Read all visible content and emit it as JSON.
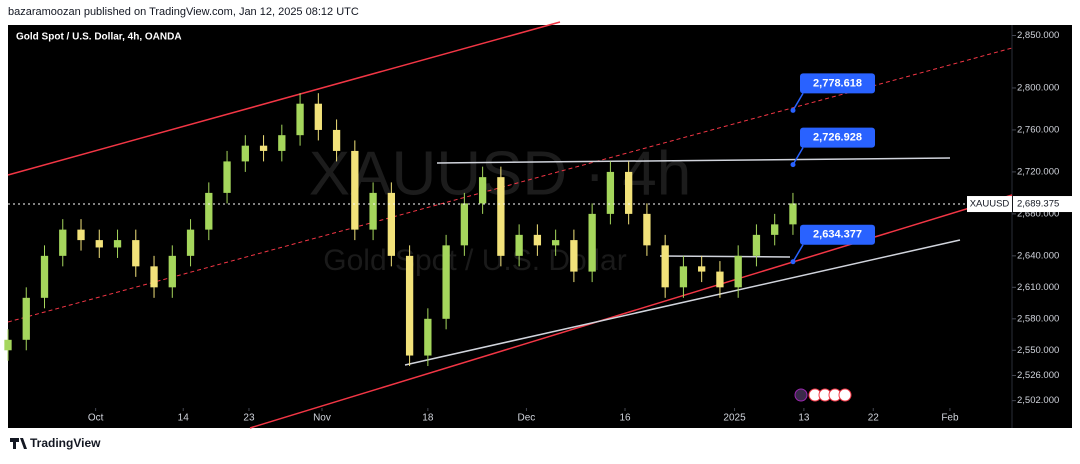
{
  "header": {
    "publisher": "bazaramoozan published on TradingView.com, Jan 12, 2025 08:12 UTC"
  },
  "footer": {
    "brand": "TradingView"
  },
  "chart_data": {
    "type": "candlestick",
    "title": "Gold Spot / U.S. Dollar, 4h, OANDA",
    "watermark": "XAUUSD · 4h",
    "watermark_subtitle": "Gold Spot / U.S. Dollar",
    "symbol": "XAUUSD",
    "last_price": {
      "value": 2689.375,
      "label": "2,689.375"
    },
    "up_color": "#a5d65c",
    "down_color": "#f2e27a",
    "x": [
      0,
      2.5,
      5,
      7.5,
      10,
      12.5,
      15,
      17.5,
      20,
      22.5,
      25,
      27.5,
      30,
      32.5,
      35,
      37.5,
      40,
      42.5,
      45,
      47.5,
      50,
      52.5,
      55,
      57.5,
      60,
      62.5,
      65,
      67.5,
      70,
      72.5,
      75,
      77.5,
      80,
      82.5,
      85,
      87.5,
      90,
      92.5,
      95,
      97.5,
      100,
      102.5,
      105,
      107.5
    ],
    "open": [
      2550,
      2560,
      2600,
      2640,
      2665,
      2655,
      2648,
      2655,
      2630,
      2610,
      2640,
      2665,
      2700,
      2730,
      2745,
      2740,
      2755,
      2785,
      2760,
      2740,
      2665,
      2700,
      2640,
      2545,
      2580,
      2650,
      2690,
      2715,
      2640,
      2660,
      2650,
      2655,
      2625,
      2680,
      2720,
      2680,
      2650,
      2610,
      2630,
      2625,
      2610,
      2640,
      2660,
      2670
    ],
    "high": [
      2570,
      2610,
      2650,
      2675,
      2675,
      2665,
      2665,
      2665,
      2640,
      2650,
      2675,
      2710,
      2740,
      2755,
      2755,
      2765,
      2795,
      2795,
      2770,
      2750,
      2710,
      2710,
      2650,
      2590,
      2660,
      2700,
      2725,
      2725,
      2670,
      2670,
      2665,
      2665,
      2690,
      2730,
      2730,
      2690,
      2660,
      2640,
      2640,
      2635,
      2650,
      2670,
      2680,
      2700
    ],
    "low": [
      2540,
      2550,
      2590,
      2630,
      2645,
      2638,
      2638,
      2620,
      2600,
      2600,
      2630,
      2655,
      2690,
      2720,
      2730,
      2730,
      2745,
      2750,
      2730,
      2655,
      2655,
      2630,
      2535,
      2535,
      2570,
      2640,
      2680,
      2630,
      2630,
      2640,
      2640,
      2615,
      2615,
      2670,
      2670,
      2640,
      2600,
      2600,
      2615,
      2600,
      2600,
      2630,
      2650,
      2660
    ],
    "close": [
      2560,
      2600,
      2640,
      2665,
      2655,
      2648,
      2655,
      2630,
      2610,
      2640,
      2665,
      2700,
      2730,
      2745,
      2740,
      2755,
      2785,
      2760,
      2740,
      2665,
      2700,
      2640,
      2545,
      2580,
      2650,
      2690,
      2715,
      2640,
      2660,
      2650,
      2655,
      2625,
      2680,
      2720,
      2680,
      2650,
      2610,
      2630,
      2625,
      2610,
      2640,
      2660,
      2670,
      2690
    ],
    "xlim": [
      0,
      137.5
    ],
    "xticks": [
      {
        "value": 12,
        "label": "Oct"
      },
      {
        "value": 24,
        "label": "14"
      },
      {
        "value": 33,
        "label": "23"
      },
      {
        "value": 43,
        "label": "Nov"
      },
      {
        "value": 57.5,
        "label": "18"
      },
      {
        "value": 71,
        "label": "Dec"
      },
      {
        "value": 84.5,
        "label": "16"
      },
      {
        "value": 99.5,
        "label": "2025"
      },
      {
        "value": 109,
        "label": "13"
      },
      {
        "value": 118.5,
        "label": "22"
      },
      {
        "value": 129,
        "label": "Feb"
      }
    ],
    "ylim": [
      2495,
      2860
    ],
    "yticks": [
      {
        "value": 2850,
        "label": "2,850.000"
      },
      {
        "value": 2800,
        "label": "2,800.000"
      },
      {
        "value": 2760,
        "label": "2,760.000"
      },
      {
        "value": 2720,
        "label": "2,720.000"
      },
      {
        "value": 2680,
        "label": "2,680.000"
      },
      {
        "value": 2640,
        "label": "2,640.000"
      },
      {
        "value": 2610,
        "label": "2,610.000"
      },
      {
        "value": 2580,
        "label": "2,580.000"
      },
      {
        "value": 2550,
        "label": "2,550.000"
      },
      {
        "value": 2526,
        "label": "2,526.000"
      },
      {
        "value": 2502,
        "label": "2,502.000"
      }
    ],
    "annotations": [
      {
        "value": 2778.618,
        "label": "2,778.618"
      },
      {
        "value": 2726.928,
        "label": "2,726.928"
      },
      {
        "value": 2634.377,
        "label": "2,634.377"
      }
    ]
  }
}
